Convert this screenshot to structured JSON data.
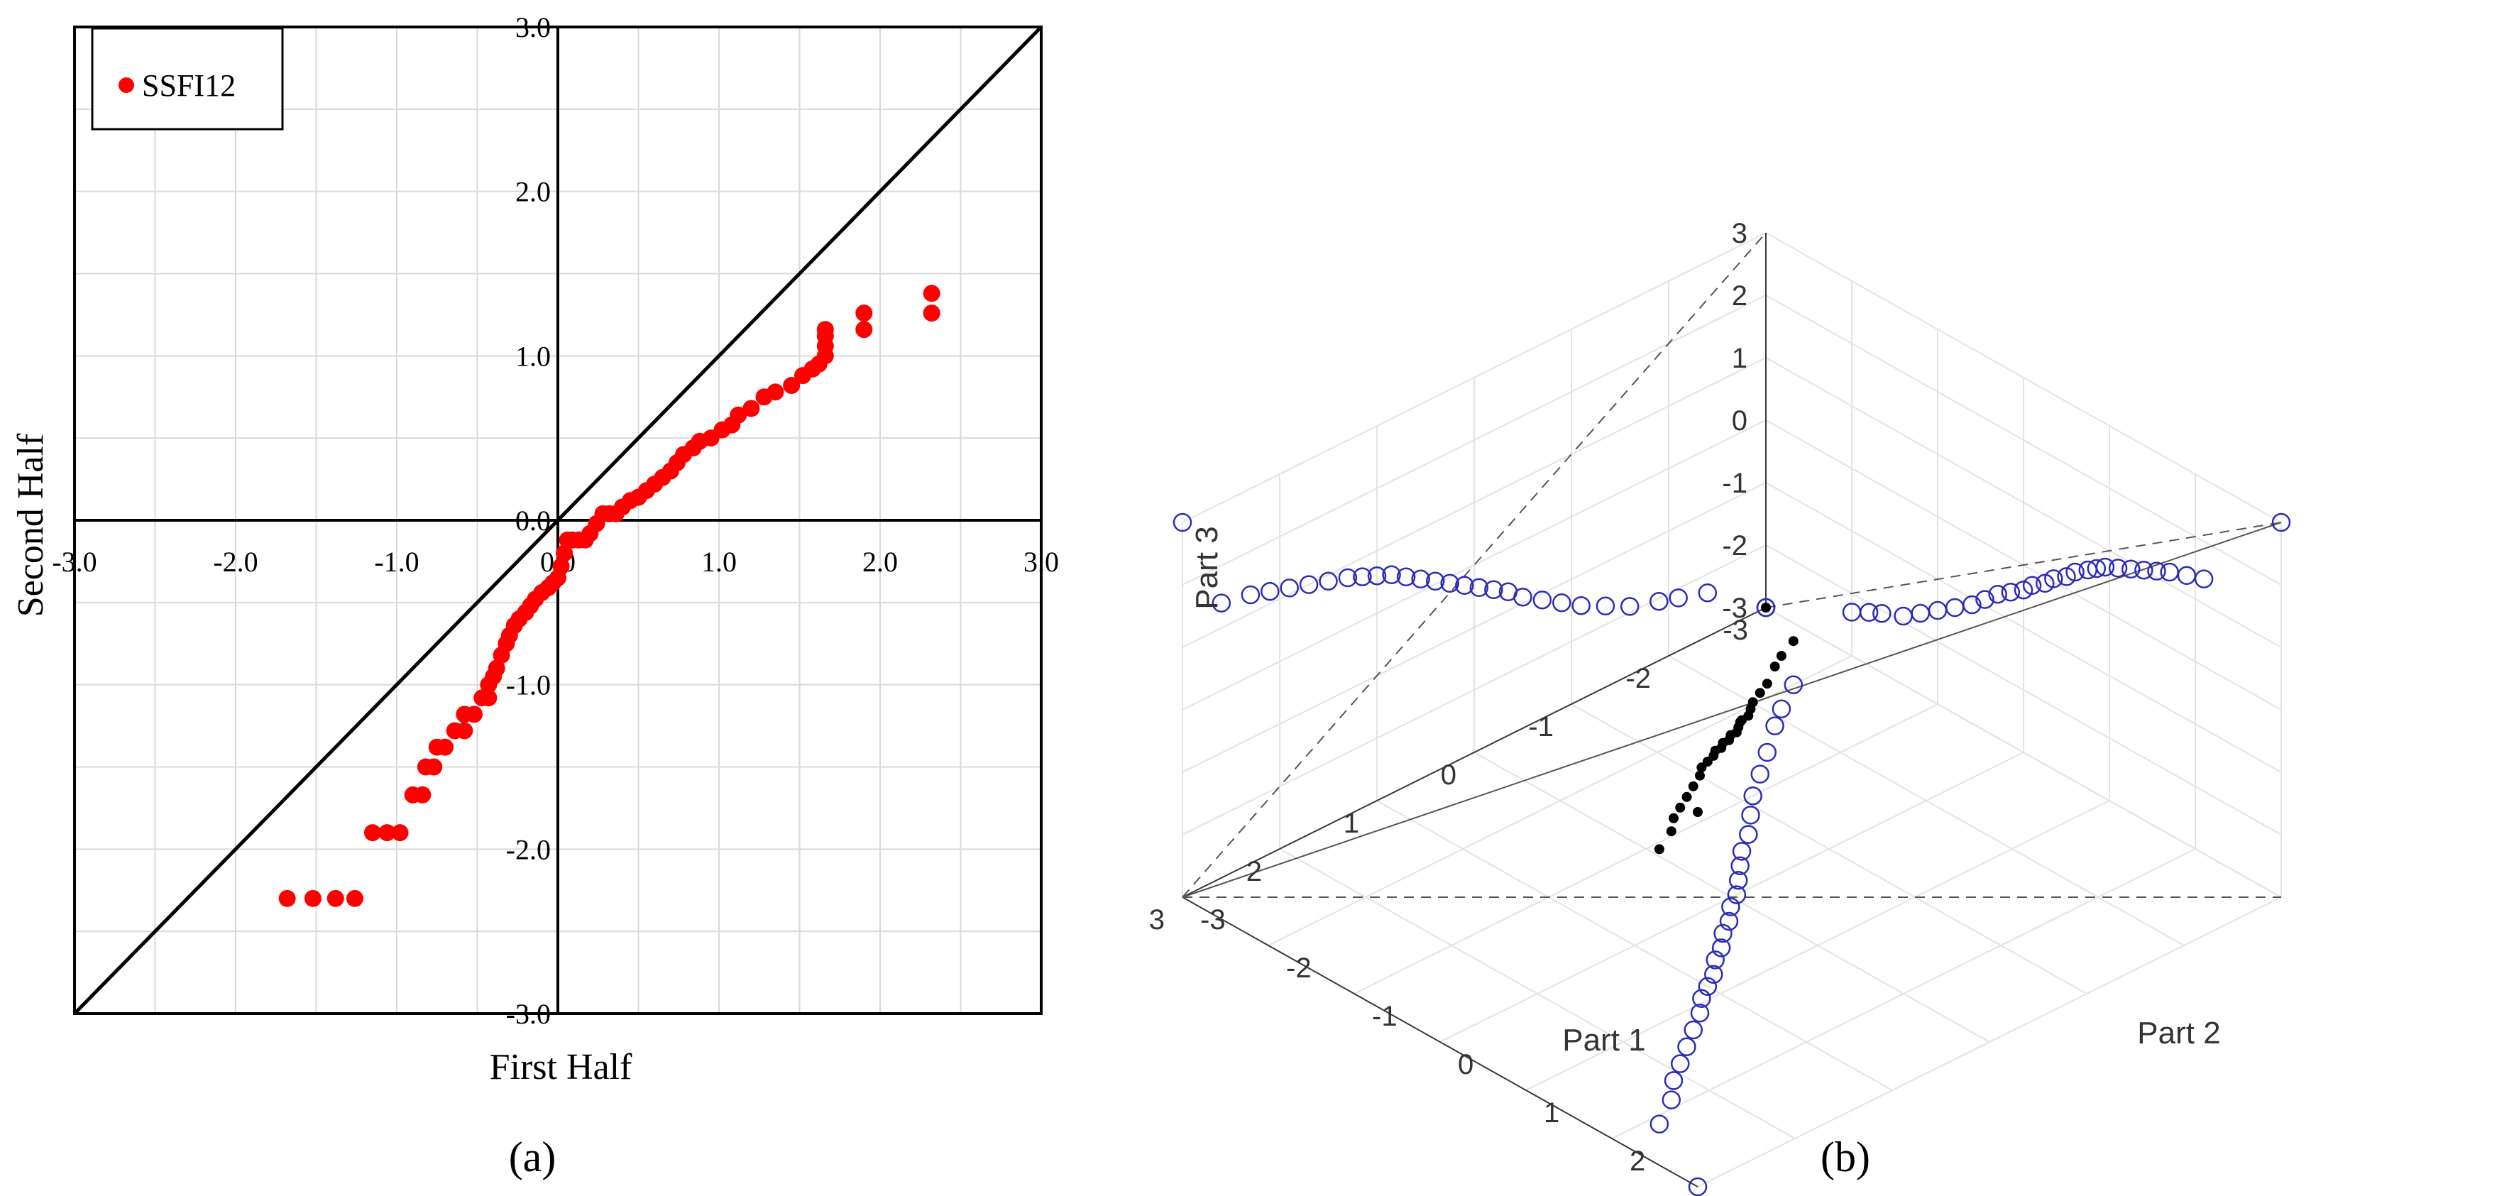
{
  "panel_a": {
    "label": "(a)",
    "chart_data": {
      "type": "scatter",
      "title": "",
      "xlabel": "First Half",
      "ylabel": "Second Half",
      "xlim": [
        -3.0,
        3.0
      ],
      "ylim": [
        -3.0,
        3.0
      ],
      "xticks": [
        "-3.0",
        "-2.0",
        "-1.0",
        "0.0",
        "1.0",
        "2.0",
        "3.0"
      ],
      "yticks": [
        "-3.0",
        "-2.0",
        "-1.0",
        "0.0",
        "1.0",
        "2.0",
        "3.0"
      ],
      "grid": true,
      "legend": {
        "position": "top-left",
        "entries": [
          "SSFI12"
        ]
      },
      "reference_line": {
        "name": "y = x",
        "from": [
          -3,
          -3
        ],
        "to": [
          3,
          3
        ]
      },
      "series": [
        {
          "name": "SSFI12",
          "color": "#ff0000",
          "points": [
            [
              -1.68,
              -2.3
            ],
            [
              -1.52,
              -2.3
            ],
            [
              -1.38,
              -2.3
            ],
            [
              -1.26,
              -2.3
            ],
            [
              -1.15,
              -1.9
            ],
            [
              -1.06,
              -1.9
            ],
            [
              -0.98,
              -1.9
            ],
            [
              -0.9,
              -1.67
            ],
            [
              -0.84,
              -1.67
            ],
            [
              -0.82,
              -1.5
            ],
            [
              -0.77,
              -1.5
            ],
            [
              -0.75,
              -1.38
            ],
            [
              -0.7,
              -1.38
            ],
            [
              -0.64,
              -1.28
            ],
            [
              -0.58,
              -1.28
            ],
            [
              -0.58,
              -1.18
            ],
            [
              -0.52,
              -1.18
            ],
            [
              -0.47,
              -1.08
            ],
            [
              -0.43,
              -1.08
            ],
            [
              -0.43,
              -1.0
            ],
            [
              -0.4,
              -0.95
            ],
            [
              -0.38,
              -0.9
            ],
            [
              -0.35,
              -0.82
            ],
            [
              -0.32,
              -0.75
            ],
            [
              -0.3,
              -0.7
            ],
            [
              -0.27,
              -0.64
            ],
            [
              -0.24,
              -0.6
            ],
            [
              -0.2,
              -0.56
            ],
            [
              -0.17,
              -0.52
            ],
            [
              -0.14,
              -0.48
            ],
            [
              -0.1,
              -0.44
            ],
            [
              -0.06,
              -0.41
            ],
            [
              -0.03,
              -0.38
            ],
            [
              0.0,
              -0.35
            ],
            [
              0.02,
              -0.28
            ],
            [
              0.04,
              -0.2
            ],
            [
              0.06,
              -0.12
            ],
            [
              0.09,
              -0.12
            ],
            [
              0.13,
              -0.12
            ],
            [
              0.17,
              -0.12
            ],
            [
              0.2,
              -0.08
            ],
            [
              0.24,
              -0.02
            ],
            [
              0.28,
              0.04
            ],
            [
              0.32,
              0.04
            ],
            [
              0.36,
              0.04
            ],
            [
              0.4,
              0.08
            ],
            [
              0.45,
              0.12
            ],
            [
              0.5,
              0.14
            ],
            [
              0.55,
              0.18
            ],
            [
              0.6,
              0.22
            ],
            [
              0.65,
              0.26
            ],
            [
              0.7,
              0.3
            ],
            [
              0.74,
              0.35
            ],
            [
              0.78,
              0.4
            ],
            [
              0.84,
              0.44
            ],
            [
              0.88,
              0.48
            ],
            [
              0.95,
              0.5
            ],
            [
              1.02,
              0.55
            ],
            [
              1.08,
              0.58
            ],
            [
              1.12,
              0.64
            ],
            [
              1.2,
              0.68
            ],
            [
              1.28,
              0.75
            ],
            [
              1.35,
              0.78
            ],
            [
              1.45,
              0.82
            ],
            [
              1.52,
              0.88
            ],
            [
              1.58,
              0.92
            ],
            [
              1.62,
              0.95
            ],
            [
              1.66,
              1.0
            ],
            [
              1.66,
              1.06
            ],
            [
              1.66,
              1.12
            ],
            [
              1.66,
              1.16
            ],
            [
              1.9,
              1.16
            ],
            [
              1.9,
              1.26
            ],
            [
              2.32,
              1.26
            ],
            [
              2.32,
              1.38
            ]
          ]
        }
      ]
    }
  },
  "panel_b": {
    "label": "(b)",
    "chart_data": {
      "type": "scatter",
      "projection": "3d",
      "title": "",
      "xlabel": "Part 1",
      "ylabel": "Part 2",
      "zlabel": "Part 3",
      "xlim": [
        -3,
        3
      ],
      "ylim": [
        -3,
        3
      ],
      "zlim": [
        -3,
        3
      ],
      "xticks": [
        "-3",
        "-2",
        "-1",
        "0",
        "1",
        "2",
        "3"
      ],
      "yticks": [
        "-3",
        "-2",
        "-1",
        "0",
        "1",
        "2",
        "3"
      ],
      "zticks": [
        "-3",
        "-2",
        "-1",
        "0",
        "1",
        "2",
        "3"
      ],
      "grid": true,
      "series": [
        {
          "name": "3d-points",
          "color": "#000000",
          "marker": "filled",
          "points": [
            [
              -3.0,
              -3.0,
              -3.0
            ],
            [
              -2.4,
              -2.0,
              -2.3
            ],
            [
              -2.1,
              -1.8,
              -2.15
            ],
            [
              -1.9,
              -1.65,
              -2.05
            ],
            [
              -1.6,
              -1.4,
              -1.9
            ],
            [
              -1.35,
              -1.2,
              -1.7
            ],
            [
              -1.1,
              -1.0,
              -1.5
            ],
            [
              -0.9,
              -0.8,
              -1.3
            ],
            [
              -0.7,
              -0.6,
              -1.1
            ],
            [
              -0.5,
              -0.45,
              -0.9
            ],
            [
              -0.35,
              -0.3,
              -0.7
            ],
            [
              -0.2,
              -0.15,
              -0.55
            ],
            [
              -0.05,
              0.0,
              -0.4
            ],
            [
              0.1,
              0.1,
              -0.25
            ],
            [
              0.25,
              0.25,
              -0.1
            ],
            [
              0.4,
              0.35,
              0.05
            ],
            [
              0.55,
              0.5,
              0.2
            ],
            [
              0.7,
              0.6,
              0.35
            ],
            [
              0.85,
              0.75,
              0.5
            ],
            [
              1.0,
              0.85,
              0.6
            ],
            [
              1.15,
              0.95,
              0.7
            ],
            [
              1.3,
              1.1,
              0.8
            ],
            [
              1.5,
              1.25,
              0.9
            ],
            [
              1.7,
              1.4,
              1.0
            ],
            [
              1.9,
              1.55,
              1.1
            ],
            [
              2.1,
              1.7,
              1.2
            ],
            [
              2.3,
              1.9,
              1.3
            ],
            [
              2.6,
              2.1,
              1.4
            ],
            [
              3.0,
              3.0,
              3.0
            ]
          ]
        },
        {
          "name": "projections",
          "color": "#2b2bb8",
          "marker": "open-circle",
          "note": "projections of the points onto the three back planes"
        }
      ]
    }
  }
}
